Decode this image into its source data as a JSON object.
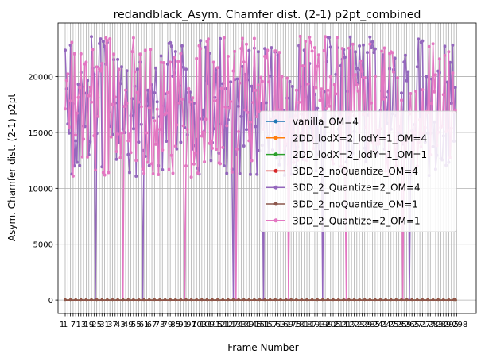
{
  "chart_data": {
    "type": "line",
    "title": "redandblack_Asym. Chamfer dist. (2-1) p2pt_combined",
    "xlabel": "Frame Number",
    "ylabel": "Asym. Chamfer dist. (2-1) p2pt",
    "xlim": [
      1,
      300
    ],
    "ylim": [
      -1200,
      24800
    ],
    "yticks": [
      0,
      5000,
      10000,
      15000,
      20000
    ],
    "x_tick_labels_overlapping": true,
    "x_tick_first_label": "1",
    "x_tick_last_label": "298",
    "grid": true,
    "legend_position": "center-right",
    "series": [
      {
        "name": "vanilla_OM=4",
        "color": "#1f77b4",
        "level": 0
      },
      {
        "name": "2DD_lodX=2_lodY=1_OM=4",
        "color": "#ff7f0e",
        "level": 0
      },
      {
        "name": "2DD_lodX=2_lodY=1_OM=1",
        "color": "#2ca02c",
        "level": 0
      },
      {
        "name": "3DD_2_noQuantize_OM=4",
        "color": "#d62728",
        "level": 0
      },
      {
        "name": "3DD_2_Quantize=2_OM=4",
        "color": "#9467bd",
        "range": [
          11000,
          23600
        ],
        "dips_at": [
          24,
          60,
          129,
          152,
          197,
          263
        ]
      },
      {
        "name": "3DD_2_noQuantize_OM=1",
        "color": "#8c564b",
        "level": 0
      },
      {
        "name": "3DD_2_Quantize=2_OM=1",
        "color": "#e377c2",
        "range": [
          11000,
          23600
        ],
        "dips_at": [
          45,
          92,
          131,
          171,
          215,
          258
        ]
      }
    ]
  }
}
